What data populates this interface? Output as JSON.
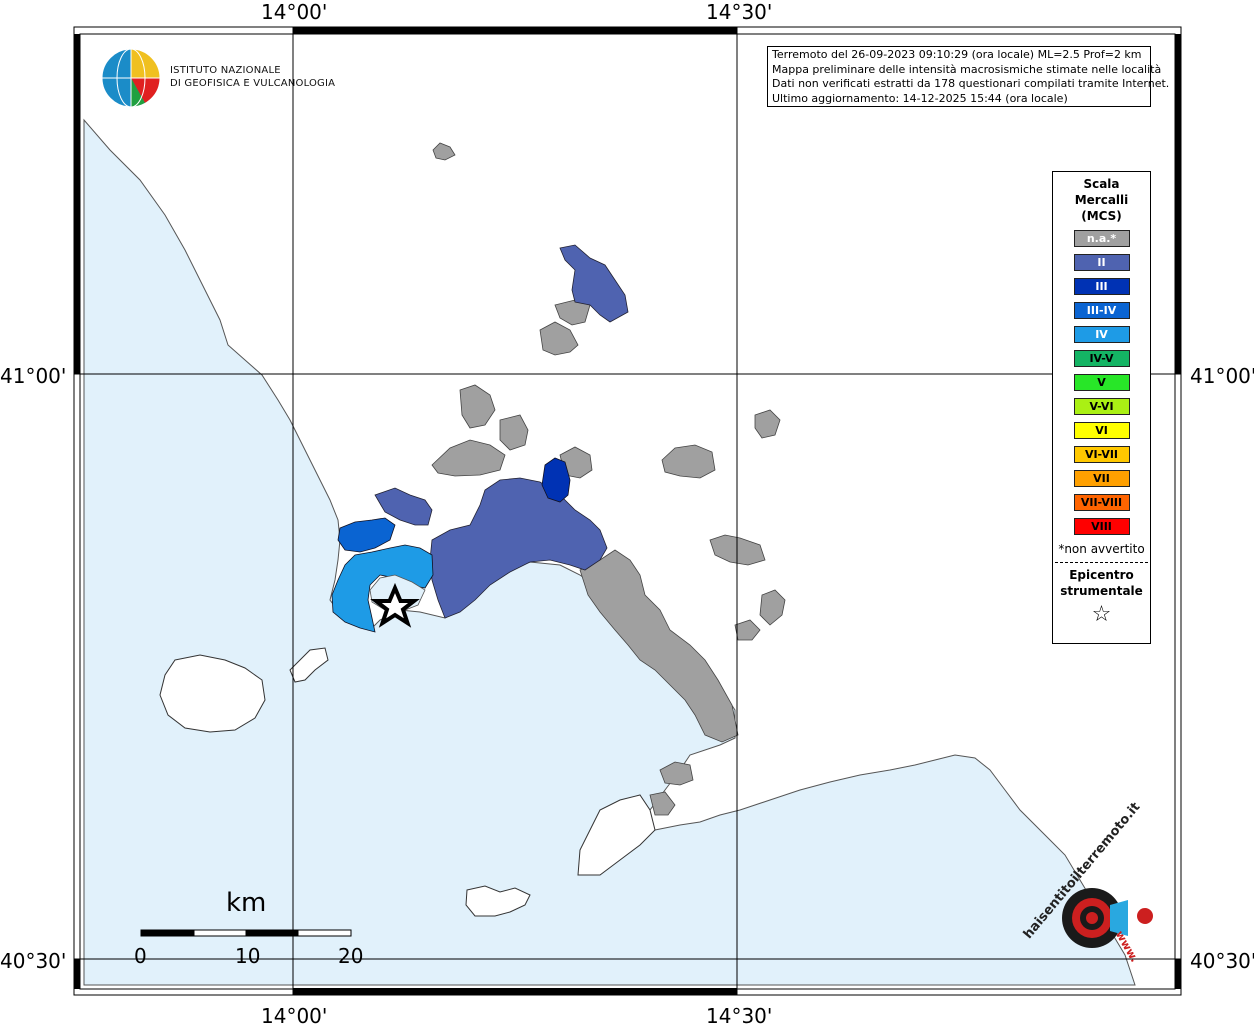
{
  "coords": {
    "lon_14_00": "14°00'",
    "lon_14_30": "14°30'",
    "lat_41_00": "41°00'",
    "lat_40_30": "40°30'"
  },
  "logo": {
    "line1": "ISTITUTO NAZIONALE",
    "line2": "DI GEOFISICA E VULCANOLOGIA"
  },
  "info": {
    "line1": "Terremoto del 26-09-2023 09:10:29 (ora locale) ML=2.5 Prof=2 km",
    "line2": "Mappa preliminare delle intensità macrosismiche stimate nelle località",
    "line3": "Dati non verificati estratti da 178 questionari compilati tramite Internet.",
    "line4": "Ultimo aggiornamento: 14-12-2025 15:44 (ora locale)"
  },
  "legend": {
    "title1": "Scala",
    "title2": "Mercalli",
    "title3": "(MCS)",
    "items": [
      {
        "label": "n.a.*",
        "color": "#a0a0a0",
        "text": "#ffffff"
      },
      {
        "label": "II",
        "color": "#4f63b0",
        "text": "#ffffff"
      },
      {
        "label": "III",
        "color": "#0032b4",
        "text": "#ffffff"
      },
      {
        "label": "III-IV",
        "color": "#0a64d2",
        "text": "#ffffff"
      },
      {
        "label": "IV",
        "color": "#1e9be6",
        "text": "#ffffff"
      },
      {
        "label": "IV-V",
        "color": "#14b464",
        "text": "#000000"
      },
      {
        "label": "V",
        "color": "#28e628",
        "text": "#000000"
      },
      {
        "label": "V-VI",
        "color": "#aaf014",
        "text": "#000000"
      },
      {
        "label": "VI",
        "color": "#ffff00",
        "text": "#000000"
      },
      {
        "label": "VI-VII",
        "color": "#ffc800",
        "text": "#000000"
      },
      {
        "label": "VII",
        "color": "#ffa000",
        "text": "#000000"
      },
      {
        "label": "VII-VIII",
        "color": "#ff6400",
        "text": "#000000"
      },
      {
        "label": "VIII",
        "color": "#ff0000",
        "text": "#000000"
      }
    ],
    "note": "*non avvertito",
    "epicenter1": "Epicentro",
    "epicenter2": "strumentale",
    "epicenter_symbol": "☆"
  },
  "scalebar": {
    "unit": "km",
    "ticks": [
      "0",
      "10",
      "20"
    ]
  },
  "hsit_logo": {
    "text": "haisentitoilterremoto.it",
    "url_text": "www."
  },
  "colors": {
    "sea": "#e1f1fb",
    "land": "#ffffff",
    "na": "#a0a0a0",
    "ii": "#4f63b0",
    "iii": "#0032b4",
    "iii_iv": "#0a64d2",
    "iv": "#1e9be6"
  }
}
